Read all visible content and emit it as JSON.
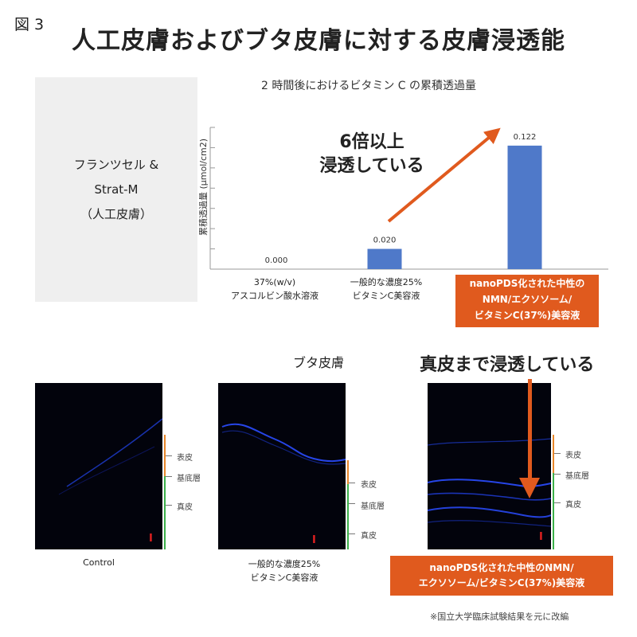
{
  "figure_label": "図 3",
  "main_title": "人工皮膚およびブタ皮膚に対する皮膚浸透能",
  "model_label": [
    "フランツセル &",
    "Strat-M",
    "（人工皮膚）"
  ],
  "chart_data": {
    "type": "bar",
    "title": "2 時間後におけるビタミン C の累積透過量",
    "ylabel": "累積透過量 (μmol/cm2)",
    "xlabel": "",
    "categories": [
      [
        "37%(w/v)",
        "アスコルビン酸水溶液"
      ],
      [
        "一般的な濃度25%",
        "ビタミンC美容液"
      ],
      [
        "nanoPDS化された中性の",
        "NMN/エクソソーム/",
        "ビタミンC(37%)美容液"
      ]
    ],
    "values": [
      0.0,
      0.02,
      0.122
    ],
    "value_labels": [
      "0.000",
      "0.020",
      "0.122"
    ],
    "ylim": [
      0,
      0.14
    ],
    "grid": false,
    "bar_color": "#4f79c9",
    "annotation": [
      "6倍以上",
      "浸透している"
    ],
    "annotation_color": "#e05a1e"
  },
  "pig_skin": {
    "title": "ブタ皮膚",
    "dermis_note": "真皮まで浸透している",
    "panels": [
      {
        "caption": [
          "Control"
        ],
        "layers": []
      },
      {
        "caption": [
          "一般的な濃度25%",
          "ビタミンC美容液"
        ],
        "layers": [
          "表皮",
          "基底層",
          "真皮"
        ]
      },
      {
        "caption": [],
        "layers": [
          "表皮",
          "基底層",
          "真皮"
        ]
      }
    ],
    "scale_mark": "I",
    "nano_label": [
      "nanoPDS化された中性のNMN/",
      "エクソソーム/ビタミンC(37%)美容液"
    ]
  },
  "footnote": "※国立大学臨床試験結果を元に改編",
  "colors": {
    "accent": "#e05a1e",
    "bar": "#4f79c9",
    "epidermis": "#e8872a",
    "dermis": "#3cb04a"
  }
}
